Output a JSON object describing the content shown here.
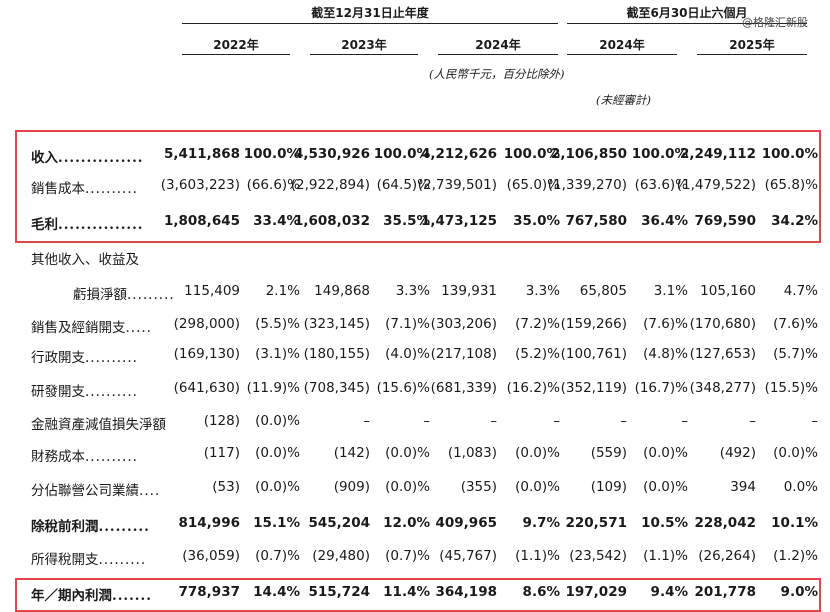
{
  "header": {
    "group_fy": "截至12月31日止年度",
    "group_h1": "截至6月30日止六個月",
    "years": [
      "2022年",
      "2023年",
      "2024年",
      "2024年",
      "2025年"
    ],
    "currency_note": "(人民幣千元，百分比除外)",
    "unaudited_note": "(未經審計)",
    "watermark": "@格隆汇新股"
  },
  "rows": [
    {
      "label": "收入",
      "dots": "...............",
      "bold": true,
      "indent": false,
      "cells": [
        [
          "5,411,868",
          "100.0%"
        ],
        [
          "4,530,926",
          "100.0%"
        ],
        [
          "4,212,626",
          "100.0%"
        ],
        [
          "2,106,850",
          "100.0%"
        ],
        [
          "2,249,112",
          "100.0%"
        ]
      ]
    },
    {
      "label": "銷售成本",
      "dots": "..........",
      "bold": false,
      "indent": false,
      "cells": [
        [
          "(3,603,223)",
          "(66.6)%"
        ],
        [
          "(2,922,894)",
          "(64.5)%"
        ],
        [
          "(2,739,501)",
          "(65.0)%"
        ],
        [
          "(1,339,270)",
          "(63.6)%"
        ],
        [
          "(1,479,522)",
          "(65.8)%"
        ]
      ]
    },
    {
      "label": "毛利",
      "dots": "...............",
      "bold": true,
      "indent": false,
      "cells": [
        [
          "1,808,645",
          "33.4%"
        ],
        [
          "1,608,032",
          "35.5%"
        ],
        [
          "1,473,125",
          "35.0%"
        ],
        [
          "767,580",
          "36.4%"
        ],
        [
          "769,590",
          "34.2%"
        ]
      ]
    },
    {
      "label": "其他收入、收益及",
      "dots": "",
      "bold": false,
      "indent": false,
      "cells": []
    },
    {
      "label": "虧損淨額",
      "dots": ".........",
      "bold": false,
      "indent": true,
      "cells": [
        [
          "115,409",
          "2.1%"
        ],
        [
          "149,868",
          "3.3%"
        ],
        [
          "139,931",
          "3.3%"
        ],
        [
          "65,805",
          "3.1%"
        ],
        [
          "105,160",
          "4.7%"
        ]
      ]
    },
    {
      "label": "銷售及經銷開支",
      "dots": ".....",
      "bold": false,
      "indent": false,
      "cells": [
        [
          "(298,000)",
          "(5.5)%"
        ],
        [
          "(323,145)",
          "(7.1)%"
        ],
        [
          "(303,206)",
          "(7.2)%"
        ],
        [
          "(159,266)",
          "(7.6)%"
        ],
        [
          "(170,680)",
          "(7.6)%"
        ]
      ]
    },
    {
      "label": "行政開支",
      "dots": "..........",
      "bold": false,
      "indent": false,
      "cells": [
        [
          "(169,130)",
          "(3.1)%"
        ],
        [
          "(180,155)",
          "(4.0)%"
        ],
        [
          "(217,108)",
          "(5.2)%"
        ],
        [
          "(100,761)",
          "(4.8)%"
        ],
        [
          "(127,653)",
          "(5.7)%"
        ]
      ]
    },
    {
      "label": "研發開支",
      "dots": "..........",
      "bold": false,
      "indent": false,
      "cells": [
        [
          "(641,630)",
          "(11.9)%"
        ],
        [
          "(708,345)",
          "(15.6)%"
        ],
        [
          "(681,339)",
          "(16.2)%"
        ],
        [
          "(352,119)",
          "(16.7)%"
        ],
        [
          "(348,277)",
          "(15.5)%"
        ]
      ]
    },
    {
      "label": "金融資產減值損失淨額",
      "dots": "",
      "bold": false,
      "indent": false,
      "cells": [
        [
          "(128)",
          "(0.0)%"
        ],
        [
          "–",
          "–"
        ],
        [
          "–",
          "–"
        ],
        [
          "–",
          "–"
        ],
        [
          "–",
          "–"
        ]
      ]
    },
    {
      "label": "財務成本",
      "dots": "..........",
      "bold": false,
      "indent": false,
      "cells": [
        [
          "(117)",
          "(0.0)%"
        ],
        [
          "(142)",
          "(0.0)%"
        ],
        [
          "(1,083)",
          "(0.0)%"
        ],
        [
          "(559)",
          "(0.0)%"
        ],
        [
          "(492)",
          "(0.0)%"
        ]
      ]
    },
    {
      "label": "分佔聯營公司業績",
      "dots": "....",
      "bold": false,
      "indent": false,
      "cells": [
        [
          "(53)",
          "(0.0)%"
        ],
        [
          "(909)",
          "(0.0)%"
        ],
        [
          "(355)",
          "(0.0)%"
        ],
        [
          "(109)",
          "(0.0)%"
        ],
        [
          "394",
          "0.0%"
        ]
      ]
    },
    {
      "label": "除稅前利潤",
      "dots": ".........",
      "bold": true,
      "indent": false,
      "cells": [
        [
          "814,996",
          "15.1%"
        ],
        [
          "545,204",
          "12.0%"
        ],
        [
          "409,965",
          "9.7%"
        ],
        [
          "220,571",
          "10.5%"
        ],
        [
          "228,042",
          "10.1%"
        ]
      ]
    },
    {
      "label": "所得稅開支",
      "dots": ".........",
      "bold": false,
      "indent": false,
      "cells": [
        [
          "(36,059)",
          "(0.7)%"
        ],
        [
          "(29,480)",
          "(0.7)%"
        ],
        [
          "(45,767)",
          "(1.1)%"
        ],
        [
          "(23,542)",
          "(1.1)%"
        ],
        [
          "(26,264)",
          "(1.2)%"
        ]
      ]
    },
    {
      "label": "年／期內利潤",
      "dots": ".......",
      "bold": true,
      "indent": false,
      "cells": [
        [
          "778,937",
          "14.4%"
        ],
        [
          "515,724",
          "11.4%"
        ],
        [
          "364,198",
          "8.6%"
        ],
        [
          "197,029",
          "9.4%"
        ],
        [
          "201,778",
          "9.0%"
        ]
      ]
    }
  ],
  "highlight_color": "#e0474c"
}
